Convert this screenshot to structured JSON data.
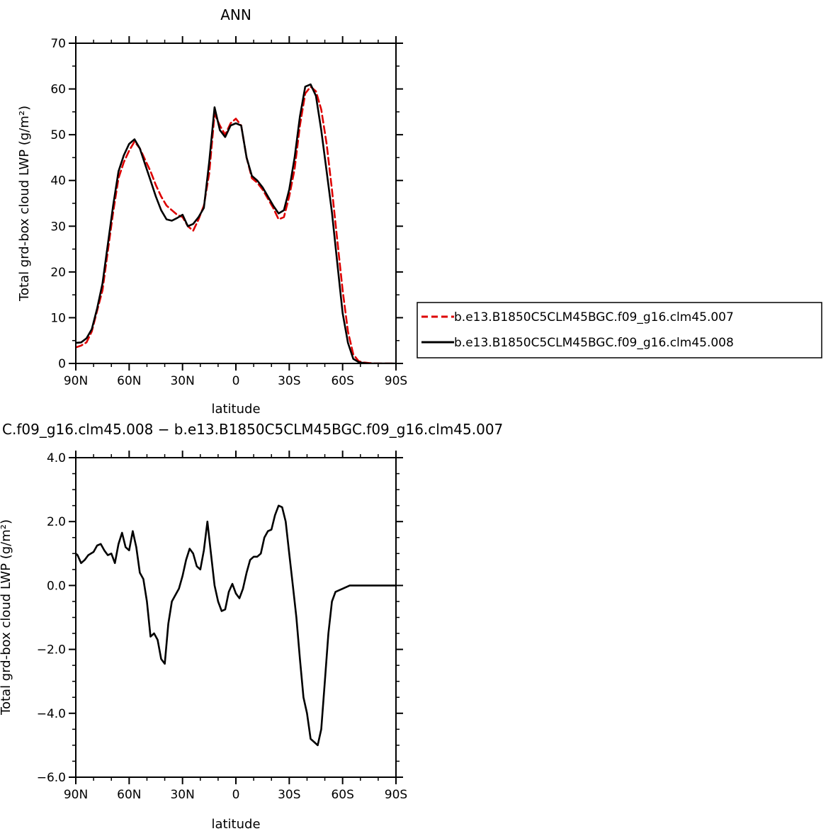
{
  "chart_data": [
    {
      "type": "line",
      "title": "ANN",
      "xlabel": "latitude",
      "ylabel": "Total grd-box cloud LWP (g/m²)",
      "xlim": [
        -90,
        90
      ],
      "x_tick_values": [
        -90,
        -60,
        -30,
        0,
        30,
        60,
        90
      ],
      "x_tick_labels": [
        "90N",
        "60N",
        "30N",
        "0",
        "30S",
        "60S",
        "90S"
      ],
      "ylim": [
        0,
        70
      ],
      "y_tick_values": [
        0,
        10,
        20,
        30,
        40,
        50,
        60,
        70
      ],
      "y_tick_labels": [
        "0",
        "10",
        "20",
        "30",
        "40",
        "50",
        "60",
        "70"
      ],
      "legend_position": "right",
      "series": [
        {
          "name": "b.e13.B1850C5CLM45BGC.f09_g16.clm45.007",
          "color": "#dd0000",
          "dash": "dashed",
          "x": [
            -90,
            -87,
            -84,
            -81,
            -78,
            -75,
            -72,
            -69,
            -66,
            -63,
            -60,
            -57,
            -54,
            -51,
            -48,
            -45,
            -42,
            -39,
            -36,
            -33,
            -30,
            -27,
            -24,
            -21,
            -18,
            -15,
            -12,
            -9,
            -6,
            -3,
            0,
            3,
            6,
            9,
            12,
            15,
            18,
            21,
            24,
            27,
            30,
            33,
            36,
            39,
            42,
            45,
            48,
            51,
            54,
            57,
            60,
            63,
            66,
            69,
            72,
            75,
            78,
            81,
            84,
            87,
            90
          ],
          "y": [
            3.5,
            3.9,
            4.6,
            7.0,
            11.5,
            16.0,
            24.5,
            33.0,
            40.5,
            44.0,
            46.5,
            48.5,
            47.0,
            44.5,
            42.0,
            39.0,
            36.5,
            34.5,
            33.5,
            32.5,
            32.0,
            30.0,
            29.0,
            31.5,
            34.5,
            41.5,
            54.5,
            52.0,
            50.0,
            52.5,
            53.5,
            52.0,
            45.0,
            40.5,
            39.5,
            38.0,
            36.0,
            34.0,
            31.5,
            32.0,
            36.5,
            42.5,
            52.0,
            59.0,
            60.5,
            59.5,
            55.5,
            48.0,
            38.0,
            27.0,
            16.0,
            7.0,
            2.0,
            0.5,
            0.2,
            0.1,
            0.0,
            0.0,
            0.0,
            0.0,
            0.0
          ]
        },
        {
          "name": "b.e13.B1850C5CLM45BGC.f09_g16.clm45.008",
          "color": "#000000",
          "dash": "solid",
          "x": [
            -90,
            -87,
            -84,
            -81,
            -78,
            -75,
            -72,
            -69,
            -66,
            -63,
            -60,
            -57,
            -54,
            -51,
            -48,
            -45,
            -42,
            -39,
            -36,
            -33,
            -30,
            -27,
            -24,
            -21,
            -18,
            -15,
            -12,
            -9,
            -6,
            -3,
            0,
            3,
            6,
            9,
            12,
            15,
            18,
            21,
            24,
            27,
            30,
            33,
            36,
            39,
            42,
            45,
            48,
            51,
            54,
            57,
            60,
            63,
            66,
            69,
            72,
            75,
            78,
            81,
            84,
            87,
            90
          ],
          "y": [
            4.5,
            4.6,
            5.5,
            7.5,
            12.0,
            17.5,
            26.0,
            34.5,
            42.0,
            45.5,
            48.0,
            49.0,
            47.0,
            43.5,
            40.0,
            36.5,
            33.5,
            31.5,
            31.2,
            31.8,
            32.5,
            30.0,
            30.5,
            32.0,
            34.0,
            44.0,
            56.0,
            51.0,
            49.5,
            52.0,
            52.5,
            52.0,
            45.0,
            41.0,
            40.0,
            38.5,
            36.5,
            34.5,
            32.8,
            33.5,
            38.0,
            45.0,
            54.0,
            60.5,
            61.0,
            58.5,
            51.0,
            42.0,
            33.0,
            22.0,
            11.0,
            4.5,
            1.0,
            0.3,
            0.1,
            0.0,
            0.0,
            0.0,
            0.0,
            0.0,
            0.0
          ]
        }
      ]
    },
    {
      "type": "line",
      "title": "C.f09_g16.clm45.008 − b.e13.B1850C5CLM45BGC.f09_g16.clm45.007",
      "xlabel": "latitude",
      "ylabel": "Total grd-box cloud LWP (g/m²)",
      "xlim": [
        -90,
        90
      ],
      "x_tick_values": [
        -90,
        -60,
        -30,
        0,
        30,
        60,
        90
      ],
      "x_tick_labels": [
        "90N",
        "60N",
        "30N",
        "0",
        "30S",
        "60S",
        "90S"
      ],
      "ylim": [
        -6,
        4
      ],
      "y_tick_values": [
        -6,
        -4,
        -2,
        0,
        2,
        4
      ],
      "y_tick_labels": [
        "−6.0",
        "−4.0",
        "−2.0",
        "0.0",
        "2.0",
        "4.0"
      ],
      "series": [
        {
          "color": "#000000",
          "dash": "solid",
          "x": [
            -90,
            -89,
            -87,
            -85,
            -83,
            -80,
            -78,
            -76,
            -74,
            -72,
            -70,
            -68,
            -66,
            -64,
            -62,
            -60,
            -58,
            -56,
            -54,
            -52,
            -50,
            -48,
            -46,
            -44,
            -42,
            -40,
            -38,
            -36,
            -34,
            -32,
            -30,
            -28,
            -26,
            -24,
            -22,
            -20,
            -18,
            -16,
            -14,
            -12,
            -10,
            -8,
            -6,
            -4,
            -2,
            0,
            2,
            4,
            6,
            8,
            10,
            12,
            14,
            16,
            18,
            20,
            22,
            24,
            26,
            28,
            30,
            32,
            34,
            36,
            38,
            40,
            42,
            44,
            46,
            48,
            50,
            52,
            54,
            56,
            58,
            60,
            62,
            64,
            66,
            68,
            70,
            72,
            74,
            76,
            78,
            80,
            82,
            84,
            86,
            88,
            90
          ],
          "y": [
            1.0,
            0.95,
            0.7,
            0.8,
            0.95,
            1.05,
            1.25,
            1.3,
            1.1,
            0.95,
            1.0,
            0.7,
            1.3,
            1.65,
            1.2,
            1.1,
            1.7,
            1.2,
            0.4,
            0.2,
            -0.5,
            -1.6,
            -1.5,
            -1.7,
            -2.3,
            -2.45,
            -1.2,
            -0.5,
            -0.3,
            -0.1,
            0.3,
            0.8,
            1.15,
            1.0,
            0.6,
            0.5,
            1.1,
            2.0,
            1.0,
            0.0,
            -0.5,
            -0.8,
            -0.75,
            -0.2,
            0.05,
            -0.25,
            -0.4,
            -0.1,
            0.4,
            0.8,
            0.9,
            0.9,
            1.0,
            1.5,
            1.7,
            1.75,
            2.2,
            2.5,
            2.45,
            2.0,
            1.0,
            0.0,
            -1.0,
            -2.3,
            -3.5,
            -4.0,
            -4.8,
            -4.9,
            -5.0,
            -4.5,
            -3.0,
            -1.5,
            -0.5,
            -0.2,
            -0.15,
            -0.1,
            -0.05,
            0.0,
            0.0,
            0.0,
            0.0,
            0.0,
            0.0,
            0.0,
            0.0,
            0.0,
            0.0,
            0.0,
            0.0,
            0.0,
            0.0
          ]
        }
      ]
    }
  ]
}
